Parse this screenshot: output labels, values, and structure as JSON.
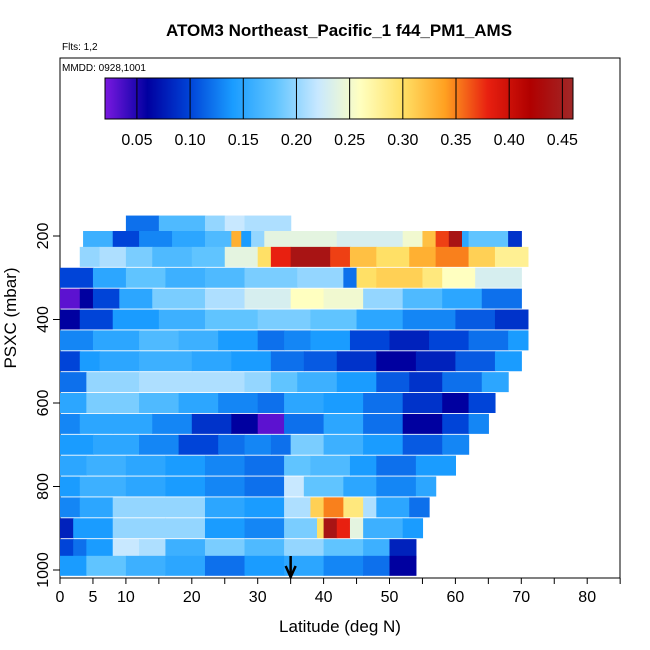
{
  "chart_data": {
    "type": "heatmap",
    "title": "ATOM3 Northeast_Pacific_1 f44_PM1_AMS",
    "notes": [
      "Flts: 1,2",
      "MMDD: 0928,1001"
    ],
    "xlabel": "Latitude (deg N)",
    "ylabel": "PSXC (mbar)",
    "xlim": [
      0,
      85
    ],
    "ylim": [
      1000,
      100
    ],
    "x_ticks": [
      0,
      5,
      10,
      20,
      30,
      40,
      50,
      60,
      70,
      80
    ],
    "y_ticks": [
      200,
      400,
      600,
      800,
      1000
    ],
    "colorbar": {
      "range": [
        0.02,
        0.46
      ],
      "ticks": [
        0.05,
        0.1,
        0.15,
        0.2,
        0.25,
        0.3,
        0.35,
        0.4,
        0.45
      ],
      "tick_labels": [
        "0.05",
        "0.10",
        "0.15",
        "0.20",
        "0.25",
        "0.30",
        "0.35",
        "0.40",
        "0.45"
      ],
      "colors": [
        "#7a18e0",
        "#0000a0",
        "#0044d8",
        "#1a9cff",
        "#60c4ff",
        "#c8e8ff",
        "#ffffc0",
        "#ffe066",
        "#ffa020",
        "#e82010",
        "#b00000",
        "#a02828"
      ]
    },
    "marker_latitude": 35,
    "bands": [
      {
        "p": 175,
        "segs": [
          [
            10,
            15,
            0.12
          ],
          [
            15,
            22,
            0.17
          ],
          [
            22,
            25,
            0.2
          ],
          [
            25,
            28,
            0.22
          ],
          [
            28,
            35,
            0.21
          ]
        ]
      },
      {
        "p": 212,
        "segs": [
          [
            3.5,
            8,
            0.16
          ],
          [
            8,
            12,
            0.1
          ],
          [
            12,
            17,
            0.13
          ],
          [
            17,
            22,
            0.15
          ],
          [
            22,
            26,
            0.17
          ],
          [
            26,
            27.5,
            0.33
          ],
          [
            27.5,
            29,
            0.14
          ],
          [
            29,
            31,
            0.2
          ],
          [
            31,
            42,
            0.24
          ],
          [
            42,
            52,
            0.23
          ],
          [
            52,
            55,
            0.25
          ],
          [
            55,
            57,
            0.32
          ],
          [
            57,
            59,
            0.37
          ],
          [
            59,
            61,
            0.44
          ],
          [
            61,
            62,
            0.15
          ],
          [
            62,
            68,
            0.18
          ],
          [
            68,
            70,
            0.09
          ]
        ]
      },
      {
        "p": 250,
        "segs": [
          [
            3,
            6,
            0.2
          ],
          [
            6,
            10,
            0.21
          ],
          [
            10,
            14,
            0.19
          ],
          [
            14,
            20,
            0.17
          ],
          [
            20,
            25,
            0.18
          ],
          [
            25,
            30,
            0.24
          ],
          [
            30,
            32,
            0.3
          ],
          [
            32,
            35,
            0.38
          ],
          [
            35,
            41,
            0.44
          ],
          [
            41,
            44,
            0.37
          ],
          [
            44,
            48,
            0.32
          ],
          [
            48,
            53,
            0.3
          ],
          [
            53,
            57,
            0.33
          ],
          [
            57,
            62,
            0.35
          ],
          [
            62,
            66,
            0.31
          ],
          [
            66,
            71,
            0.28
          ]
        ]
      },
      {
        "p": 300,
        "segs": [
          [
            0,
            5,
            0.1
          ],
          [
            5,
            10,
            0.15
          ],
          [
            10,
            16,
            0.18
          ],
          [
            16,
            22,
            0.16
          ],
          [
            22,
            28,
            0.17
          ],
          [
            28,
            36,
            0.19
          ],
          [
            36,
            43,
            0.2
          ],
          [
            43,
            45,
            0.12
          ],
          [
            45,
            48,
            0.3
          ],
          [
            48,
            55,
            0.31
          ],
          [
            55,
            58,
            0.29
          ],
          [
            58,
            63,
            0.26
          ],
          [
            63,
            70,
            0.23
          ]
        ]
      },
      {
        "p": 350,
        "segs": [
          [
            0,
            3,
            0.03
          ],
          [
            3,
            5,
            0.06
          ],
          [
            5,
            9,
            0.1
          ],
          [
            9,
            14,
            0.15
          ],
          [
            14,
            22,
            0.19
          ],
          [
            22,
            28,
            0.21
          ],
          [
            28,
            35,
            0.23
          ],
          [
            35,
            40,
            0.26
          ],
          [
            40,
            46,
            0.25
          ],
          [
            46,
            52,
            0.2
          ],
          [
            52,
            58,
            0.17
          ],
          [
            58,
            64,
            0.15
          ],
          [
            64,
            70,
            0.12
          ]
        ]
      },
      {
        "p": 400,
        "segs": [
          [
            0,
            3,
            0.06
          ],
          [
            3,
            8,
            0.1
          ],
          [
            8,
            15,
            0.14
          ],
          [
            15,
            22,
            0.16
          ],
          [
            22,
            30,
            0.18
          ],
          [
            30,
            38,
            0.19
          ],
          [
            38,
            45,
            0.18
          ],
          [
            45,
            52,
            0.15
          ],
          [
            52,
            60,
            0.13
          ],
          [
            60,
            66,
            0.11
          ],
          [
            66,
            71,
            0.09
          ]
        ]
      },
      {
        "p": 450,
        "segs": [
          [
            0,
            5,
            0.13
          ],
          [
            5,
            12,
            0.15
          ],
          [
            12,
            18,
            0.17
          ],
          [
            18,
            24,
            0.16
          ],
          [
            24,
            30,
            0.14
          ],
          [
            30,
            34,
            0.12
          ],
          [
            34,
            38,
            0.13
          ],
          [
            38,
            44,
            0.14
          ],
          [
            44,
            50,
            0.1
          ],
          [
            50,
            56,
            0.08
          ],
          [
            56,
            62,
            0.1
          ],
          [
            62,
            68,
            0.12
          ],
          [
            68,
            71,
            0.14
          ]
        ]
      },
      {
        "p": 500,
        "segs": [
          [
            0,
            3,
            0.1
          ],
          [
            3,
            6,
            0.14
          ],
          [
            6,
            12,
            0.15
          ],
          [
            12,
            20,
            0.16
          ],
          [
            20,
            26,
            0.15
          ],
          [
            26,
            32,
            0.14
          ],
          [
            32,
            37,
            0.12
          ],
          [
            37,
            42,
            0.11
          ],
          [
            42,
            48,
            0.09
          ],
          [
            48,
            54,
            0.06
          ],
          [
            54,
            60,
            0.08
          ],
          [
            60,
            66,
            0.11
          ],
          [
            66,
            70,
            0.14
          ]
        ]
      },
      {
        "p": 550,
        "segs": [
          [
            0,
            4,
            0.12
          ],
          [
            4,
            12,
            0.2
          ],
          [
            12,
            20,
            0.21
          ],
          [
            20,
            28,
            0.21
          ],
          [
            28,
            32,
            0.2
          ],
          [
            32,
            36,
            0.18
          ],
          [
            36,
            42,
            0.16
          ],
          [
            42,
            48,
            0.14
          ],
          [
            48,
            53,
            0.11
          ],
          [
            53,
            58,
            0.09
          ],
          [
            58,
            64,
            0.12
          ],
          [
            64,
            68,
            0.15
          ]
        ]
      },
      {
        "p": 600,
        "segs": [
          [
            0,
            4,
            0.15
          ],
          [
            4,
            12,
            0.19
          ],
          [
            12,
            18,
            0.17
          ],
          [
            18,
            24,
            0.15
          ],
          [
            24,
            30,
            0.13
          ],
          [
            30,
            34,
            0.12
          ],
          [
            34,
            40,
            0.15
          ],
          [
            40,
            46,
            0.14
          ],
          [
            46,
            52,
            0.12
          ],
          [
            52,
            58,
            0.09
          ],
          [
            58,
            62,
            0.06
          ],
          [
            62,
            66,
            0.1
          ]
        ]
      },
      {
        "p": 650,
        "segs": [
          [
            0,
            3,
            0.13
          ],
          [
            3,
            8,
            0.15
          ],
          [
            8,
            14,
            0.15
          ],
          [
            14,
            20,
            0.13
          ],
          [
            20,
            26,
            0.09
          ],
          [
            26,
            30,
            0.06
          ],
          [
            30,
            34,
            0.03
          ],
          [
            34,
            40,
            0.12
          ],
          [
            40,
            46,
            0.15
          ],
          [
            46,
            52,
            0.12
          ],
          [
            52,
            58,
            0.06
          ],
          [
            58,
            62,
            0.1
          ],
          [
            62,
            65,
            0.13
          ]
        ]
      },
      {
        "p": 700,
        "segs": [
          [
            0,
            5,
            0.14
          ],
          [
            5,
            12,
            0.15
          ],
          [
            12,
            18,
            0.13
          ],
          [
            18,
            24,
            0.1
          ],
          [
            24,
            28,
            0.12
          ],
          [
            28,
            32,
            0.13
          ],
          [
            32,
            35,
            0.12
          ],
          [
            35,
            40,
            0.19
          ],
          [
            40,
            46,
            0.16
          ],
          [
            46,
            52,
            0.14
          ],
          [
            52,
            58,
            0.11
          ],
          [
            58,
            62,
            0.13
          ]
        ]
      },
      {
        "p": 750,
        "segs": [
          [
            0,
            4,
            0.15
          ],
          [
            4,
            10,
            0.16
          ],
          [
            10,
            16,
            0.15
          ],
          [
            16,
            22,
            0.14
          ],
          [
            22,
            28,
            0.13
          ],
          [
            28,
            34,
            0.12
          ],
          [
            34,
            38,
            0.18
          ],
          [
            38,
            44,
            0.17
          ],
          [
            44,
            48,
            0.14
          ],
          [
            48,
            54,
            0.12
          ],
          [
            54,
            60,
            0.14
          ]
        ]
      },
      {
        "p": 800,
        "segs": [
          [
            0,
            3,
            0.14
          ],
          [
            3,
            10,
            0.16
          ],
          [
            10,
            16,
            0.15
          ],
          [
            16,
            22,
            0.14
          ],
          [
            22,
            28,
            0.13
          ],
          [
            28,
            34,
            0.12
          ],
          [
            34,
            37,
            0.22
          ],
          [
            37,
            43,
            0.18
          ],
          [
            43,
            48,
            0.15
          ],
          [
            48,
            54,
            0.13
          ],
          [
            54,
            57,
            0.15
          ]
        ]
      },
      {
        "p": 850,
        "segs": [
          [
            0,
            3,
            0.13
          ],
          [
            3,
            8,
            0.15
          ],
          [
            8,
            16,
            0.2
          ],
          [
            16,
            22,
            0.2
          ],
          [
            22,
            28,
            0.15
          ],
          [
            28,
            34,
            0.14
          ],
          [
            34,
            38,
            0.21
          ],
          [
            38,
            40,
            0.31
          ],
          [
            40,
            43,
            0.35
          ],
          [
            43,
            46,
            0.29
          ],
          [
            46,
            48,
            0.21
          ],
          [
            48,
            53,
            0.15
          ],
          [
            53,
            56,
            0.12
          ]
        ]
      },
      {
        "p": 900,
        "segs": [
          [
            0,
            2,
            0.08
          ],
          [
            2,
            8,
            0.14
          ],
          [
            8,
            16,
            0.2
          ],
          [
            16,
            22,
            0.2
          ],
          [
            22,
            28,
            0.14
          ],
          [
            28,
            34,
            0.13
          ],
          [
            34,
            39,
            0.19
          ],
          [
            39,
            40,
            0.3
          ],
          [
            40,
            42,
            0.44
          ],
          [
            42,
            44,
            0.38
          ],
          [
            44,
            46,
            0.24
          ],
          [
            46,
            52,
            0.16
          ],
          [
            52,
            55,
            0.14
          ]
        ]
      },
      {
        "p": 950,
        "segs": [
          [
            0,
            2,
            0.1
          ],
          [
            2,
            4,
            0.12
          ],
          [
            4,
            8,
            0.14
          ],
          [
            8,
            12,
            0.22
          ],
          [
            12,
            16,
            0.21
          ],
          [
            16,
            22,
            0.16
          ],
          [
            22,
            28,
            0.19
          ],
          [
            28,
            34,
            0.17
          ],
          [
            34,
            40,
            0.2
          ],
          [
            40,
            46,
            0.18
          ],
          [
            46,
            50,
            0.16
          ],
          [
            50,
            54,
            0.08
          ]
        ]
      },
      {
        "p": 990,
        "segs": [
          [
            0,
            4,
            0.14
          ],
          [
            4,
            10,
            0.18
          ],
          [
            10,
            16,
            0.16
          ],
          [
            16,
            22,
            0.15
          ],
          [
            22,
            28,
            0.12
          ],
          [
            28,
            34,
            0.14
          ],
          [
            34,
            40,
            0.15
          ],
          [
            40,
            46,
            0.13
          ],
          [
            46,
            50,
            0.12
          ],
          [
            50,
            54,
            0.06
          ]
        ]
      }
    ]
  }
}
